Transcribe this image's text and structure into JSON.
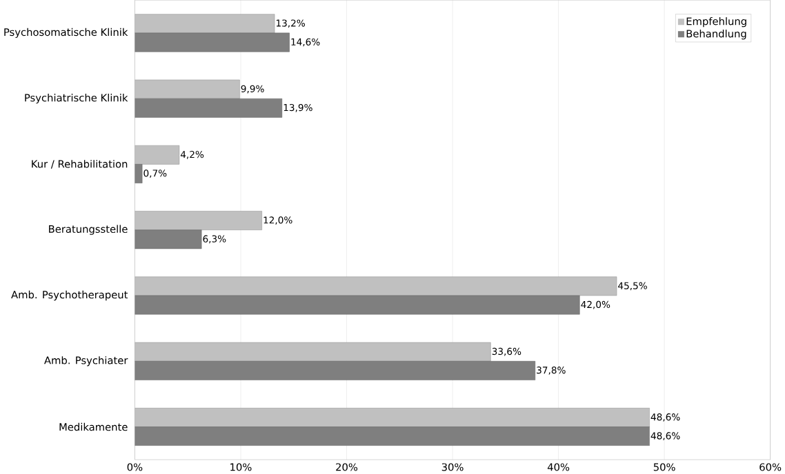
{
  "chart_data": {
    "type": "bar",
    "orientation": "horizontal",
    "categories": [
      "Psychosomatische Klinik",
      "Psychiatrische Klinik",
      "Kur / Rehabilitation",
      "Beratungsstelle",
      "Amb. Psychotherapeut",
      "Amb. Psychiater",
      "Medikamente"
    ],
    "series": [
      {
        "name": "Empfehlung",
        "color": "#c0c0c0",
        "values": [
          13.2,
          9.9,
          4.2,
          12.0,
          45.5,
          33.6,
          48.6
        ],
        "value_labels": [
          "13,2%",
          "9,9%",
          "4,2%",
          "12,0%",
          "45,5%",
          "33,6%",
          "48,6%"
        ]
      },
      {
        "name": "Behandlung",
        "color": "#7f7f7f",
        "values": [
          14.6,
          13.9,
          0.7,
          6.3,
          42.0,
          37.8,
          48.6
        ],
        "value_labels": [
          "14,6%",
          "13,9%",
          "0,7%",
          "6,3%",
          "42,0%",
          "37,8%",
          "48,6%"
        ]
      }
    ],
    "xlim": [
      0,
      60
    ],
    "xticks": [
      {
        "value": 0,
        "label": "0%"
      },
      {
        "value": 10,
        "label": "10%"
      },
      {
        "value": 20,
        "label": "20%"
      },
      {
        "value": 30,
        "label": "30%"
      },
      {
        "value": 40,
        "label": "40%"
      },
      {
        "value": 50,
        "label": "50%"
      },
      {
        "value": 60,
        "label": "60%"
      }
    ],
    "grid": "x",
    "legend": "top right"
  }
}
